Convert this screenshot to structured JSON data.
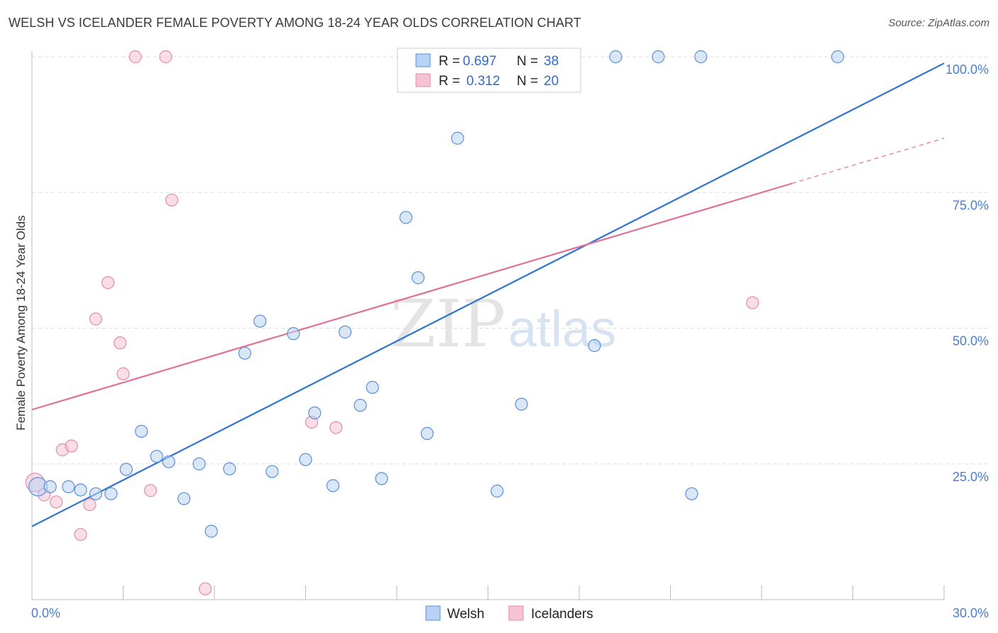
{
  "title": "WELSH VS ICELANDER FEMALE POVERTY AMONG 18-24 YEAR OLDS CORRELATION CHART",
  "source": "Source: ZipAtlas.com",
  "watermark": {
    "zip": "ZIP",
    "atlas": "atlas"
  },
  "colors": {
    "welsh_fill": "#b9d3f4",
    "welsh_stroke": "#5b8fd8",
    "welsh_line": "#2f74d0",
    "ice_fill": "#f6c3d3",
    "ice_stroke": "#e58aa8",
    "ice_line": "#e0709a",
    "grid": "#dddddd",
    "axis_text": "#4a7fd0"
  },
  "legend": {
    "welsh": {
      "r_label": "R = ",
      "r_value": "0.697",
      "n_label": "N = ",
      "n_value": "38"
    },
    "icelanders": {
      "r_label": "R = ",
      "r_value": "0.312",
      "n_label": "N = ",
      "n_value": "20"
    }
  },
  "chart_data": {
    "type": "scatter",
    "title": "WELSH VS ICELANDER FEMALE POVERTY AMONG 18-24 YEAR OLDS CORRELATION CHART",
    "xlabel": "",
    "ylabel": "Female Poverty Among 18-24 Year Olds",
    "xlim": [
      0,
      30
    ],
    "ylim": [
      0,
      101
    ],
    "x_tick_labels": [
      "0.0%",
      "30.0%"
    ],
    "y_ticks": [
      25,
      50,
      75,
      100
    ],
    "y_tick_labels": [
      "25.0%",
      "50.0%",
      "75.0%",
      "100.0%"
    ],
    "grid": true,
    "legend_placement": "top-center",
    "series": [
      {
        "name": "Welsh",
        "color": "#5b8fd8",
        "points": [
          [
            0.2,
            20.8
          ],
          [
            0.6,
            20.8
          ],
          [
            1.2,
            20.8
          ],
          [
            1.6,
            20.2
          ],
          [
            2.1,
            19.5
          ],
          [
            2.6,
            19.5
          ],
          [
            3.1,
            24.0
          ],
          [
            3.6,
            31.0
          ],
          [
            4.1,
            26.4
          ],
          [
            4.5,
            25.4
          ],
          [
            5.0,
            18.6
          ],
          [
            5.5,
            25.0
          ],
          [
            5.9,
            12.6
          ],
          [
            6.5,
            24.1
          ],
          [
            7.0,
            45.4
          ],
          [
            7.5,
            51.3
          ],
          [
            7.9,
            23.6
          ],
          [
            8.6,
            49.0
          ],
          [
            9.0,
            25.8
          ],
          [
            9.3,
            34.4
          ],
          [
            9.9,
            21.0
          ],
          [
            10.3,
            49.3
          ],
          [
            10.8,
            35.8
          ],
          [
            11.2,
            39.1
          ],
          [
            11.5,
            22.3
          ],
          [
            12.3,
            70.4
          ],
          [
            12.7,
            59.3
          ],
          [
            13.0,
            30.6
          ],
          [
            14.0,
            85.0
          ],
          [
            14.5,
            100.0
          ],
          [
            15.3,
            20.0
          ],
          [
            16.1,
            36.0
          ],
          [
            18.5,
            46.8
          ],
          [
            19.2,
            100.0
          ],
          [
            20.6,
            100.0
          ],
          [
            21.7,
            19.5
          ],
          [
            22.0,
            100.0
          ],
          [
            26.5,
            100.0
          ]
        ],
        "trend": {
          "x": [
            0,
            30
          ],
          "y": [
            13.5,
            98.8
          ]
        }
      },
      {
        "name": "Icelanders",
        "color": "#e58aa8",
        "points": [
          [
            0.1,
            21.6
          ],
          [
            0.4,
            19.3
          ],
          [
            0.8,
            18.0
          ],
          [
            1.0,
            27.6
          ],
          [
            1.3,
            28.3
          ],
          [
            1.6,
            12.0
          ],
          [
            1.9,
            17.5
          ],
          [
            2.1,
            51.7
          ],
          [
            2.5,
            58.4
          ],
          [
            2.9,
            47.3
          ],
          [
            3.0,
            41.6
          ],
          [
            3.4,
            100.0
          ],
          [
            3.9,
            20.1
          ],
          [
            4.4,
            100.0
          ],
          [
            4.6,
            73.6
          ],
          [
            5.7,
            2.0
          ],
          [
            9.2,
            32.7
          ],
          [
            10.0,
            31.7
          ],
          [
            13.8,
            100.0
          ],
          [
            23.7,
            54.7
          ]
        ],
        "trend": {
          "x": [
            0,
            30
          ],
          "y": [
            35.0,
            85.0
          ]
        }
      }
    ]
  },
  "bottom_legend": {
    "welsh": "Welsh",
    "icelanders": "Icelanders"
  }
}
